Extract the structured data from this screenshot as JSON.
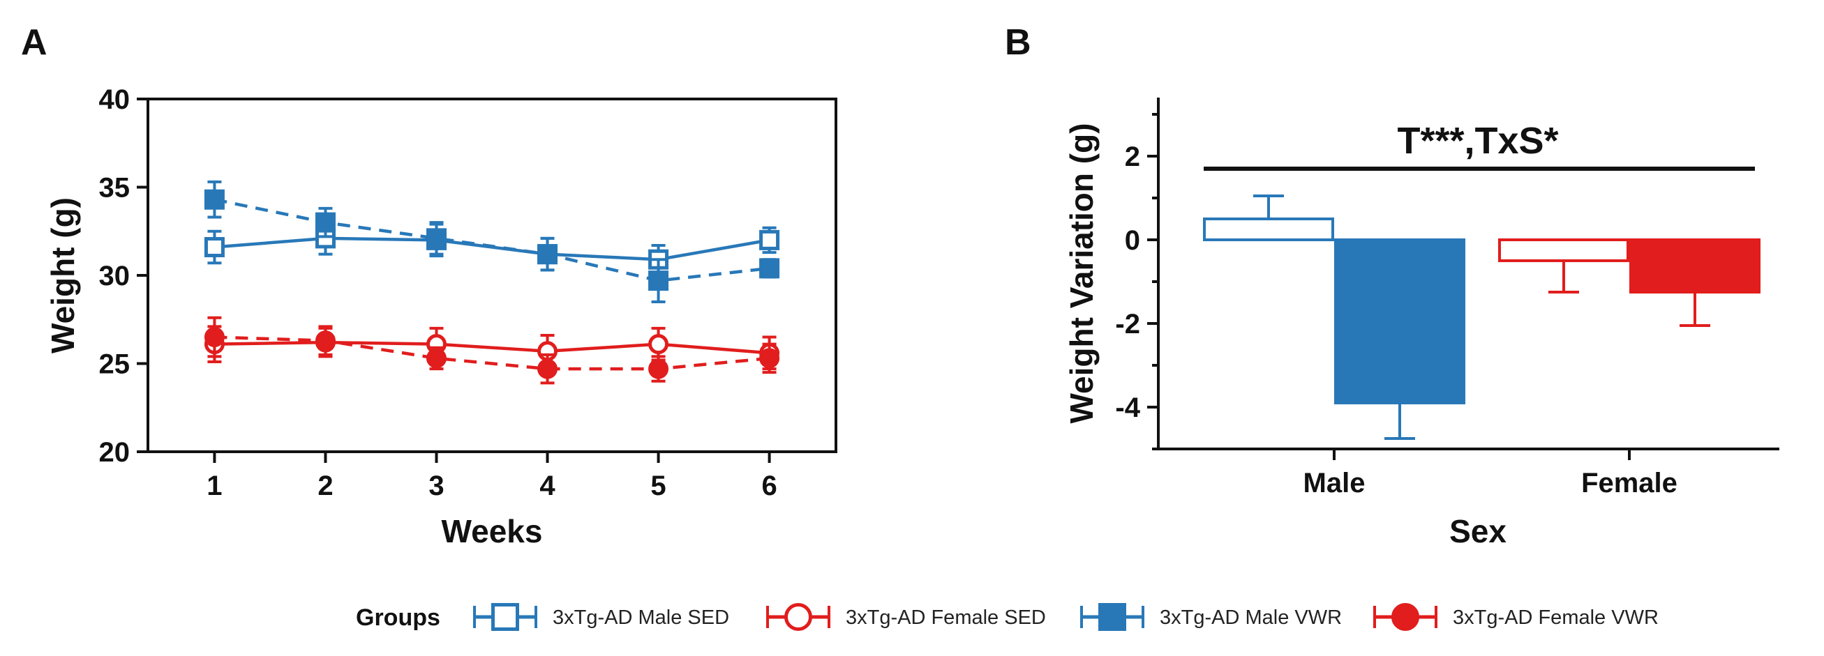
{
  "panels": {
    "a_label": "A",
    "b_label": "B"
  },
  "colors": {
    "male": "#2878b8",
    "female": "#e11d1d",
    "axis": "#111111"
  },
  "chart_data": [
    {
      "type": "line",
      "panel": "A",
      "xlabel": "Weeks",
      "ylabel": "Weight (g)",
      "x": [
        1,
        2,
        3,
        4,
        5,
        6
      ],
      "xlim": [
        0.4,
        6.6
      ],
      "ylim": [
        20,
        40
      ],
      "yticks": [
        20,
        25,
        30,
        35,
        40
      ],
      "series": [
        {
          "name": "3xTg-AD Male SED",
          "color": "male",
          "marker": "square-open",
          "dash": false,
          "values": [
            31.6,
            32.1,
            32.0,
            31.2,
            30.9,
            32.0
          ],
          "errors": [
            0.9,
            0.9,
            0.9,
            0.9,
            0.8,
            0.7
          ]
        },
        {
          "name": "3xTg-AD Female SED",
          "color": "female",
          "marker": "circle-open",
          "dash": false,
          "values": [
            26.1,
            26.2,
            26.1,
            25.7,
            26.1,
            25.6
          ],
          "errors": [
            1.0,
            0.8,
            0.9,
            0.9,
            0.9,
            0.9
          ]
        },
        {
          "name": "3xTg-AD Male VWR",
          "color": "male",
          "marker": "square-filled",
          "dash": true,
          "values": [
            34.3,
            33.0,
            32.1,
            31.2,
            29.7,
            30.4
          ],
          "errors": [
            1.0,
            0.8,
            0.9,
            0.9,
            1.2,
            0.5
          ]
        },
        {
          "name": "3xTg-AD Female VWR",
          "color": "female",
          "marker": "circle-filled",
          "dash": true,
          "values": [
            26.5,
            26.3,
            25.3,
            24.7,
            24.7,
            25.3
          ],
          "errors": [
            1.1,
            0.8,
            0.6,
            0.8,
            0.7,
            0.8
          ]
        }
      ]
    },
    {
      "type": "bar",
      "panel": "B",
      "xlabel": "Sex",
      "ylabel": "Weight Variation (g)",
      "categories": [
        "Male",
        "Female"
      ],
      "ylim": [
        -5,
        3.4
      ],
      "yticks": [
        -4,
        -2,
        0,
        2
      ],
      "annotation": "T***,TxS*",
      "series": [
        {
          "name": "SED",
          "fill": false,
          "values": [
            0.5,
            -0.5
          ],
          "errors": [
            0.55,
            0.75
          ]
        },
        {
          "name": "VWR",
          "fill": true,
          "values": [
            -3.9,
            -1.25
          ],
          "errors": [
            0.85,
            0.8
          ]
        }
      ]
    }
  ],
  "legend": {
    "title": "Groups",
    "items": [
      {
        "label": "3xTg-AD Male SED",
        "color": "male",
        "marker": "square-open"
      },
      {
        "label": "3xTg-AD Female SED",
        "color": "female",
        "marker": "circle-open"
      },
      {
        "label": "3xTg-AD Male VWR",
        "color": "male",
        "marker": "square-filled"
      },
      {
        "label": "3xTg-AD Female VWR",
        "color": "female",
        "marker": "circle-filled"
      }
    ]
  }
}
